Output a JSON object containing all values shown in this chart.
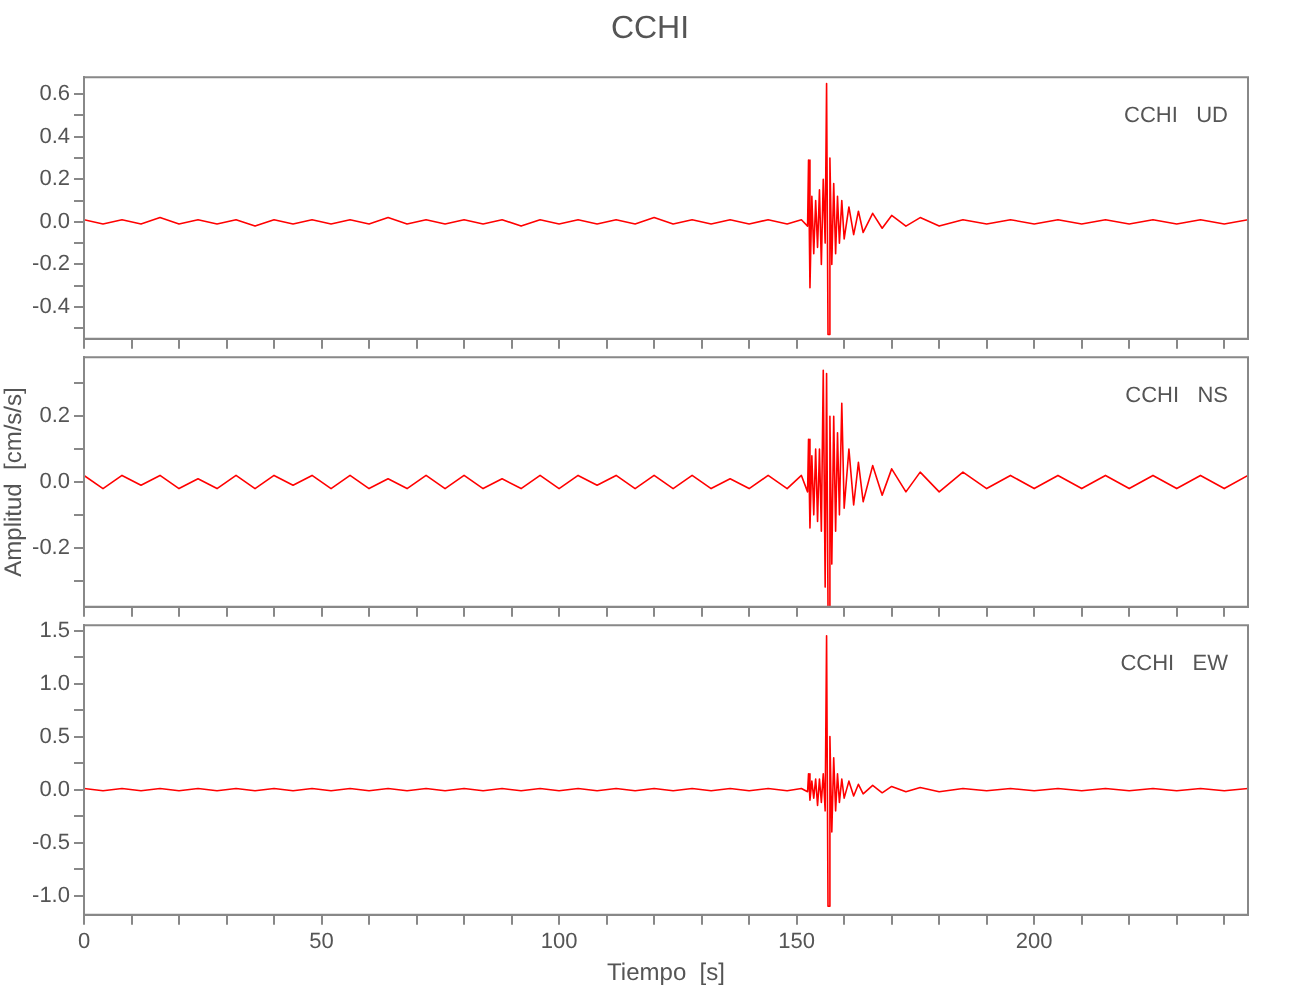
{
  "chart_data": [
    {
      "type": "line",
      "title": "CCHI",
      "annotations": [
        "CCHI   UD"
      ],
      "tick_labels": "y",
      "legend": false,
      "grid": false,
      "marker": "none",
      "x": [
        0,
        4,
        8,
        12,
        16,
        20,
        24,
        28,
        32,
        36,
        40,
        44,
        48,
        52,
        56,
        60,
        64,
        68,
        72,
        76,
        80,
        84,
        88,
        92,
        96,
        100,
        104,
        108,
        112,
        116,
        120,
        124,
        128,
        132,
        136,
        140,
        144,
        148,
        151,
        152.3,
        152.5,
        152.8,
        153.2,
        153.6,
        154,
        154.4,
        154.8,
        155.2,
        155.6,
        156,
        156.3,
        156.6,
        157,
        157.4,
        157.8,
        158.2,
        158.6,
        159,
        159.5,
        160,
        161,
        162,
        163,
        164,
        166,
        168,
        170,
        173,
        176,
        180,
        185,
        190,
        195,
        200,
        205,
        210,
        215,
        220,
        225,
        230,
        235,
        240,
        245
      ],
      "series": [
        {
          "color": "#ff0000",
          "values": [
            0.01,
            -0.01,
            0.01,
            -0.01,
            0.02,
            -0.01,
            0.01,
            -0.01,
            0.01,
            -0.02,
            0.01,
            -0.01,
            0.01,
            -0.01,
            0.01,
            -0.01,
            0.02,
            -0.01,
            0.01,
            -0.01,
            0.01,
            -0.01,
            0.01,
            -0.02,
            0.01,
            -0.01,
            0.01,
            -0.01,
            0.01,
            -0.01,
            0.02,
            -0.01,
            0.01,
            -0.01,
            0.01,
            -0.01,
            0.01,
            -0.01,
            0.01,
            -0.02,
            0.29,
            -0.31,
            0.12,
            -0.15,
            0.1,
            -0.12,
            0.15,
            -0.2,
            0.2,
            -0.1,
            0.65,
            -0.53,
            0.3,
            -0.2,
            0.18,
            -0.15,
            0.12,
            -0.1,
            0.1,
            -0.08,
            0.07,
            -0.06,
            0.05,
            -0.05,
            0.04,
            -0.03,
            0.03,
            -0.02,
            0.02,
            -0.02,
            0.01,
            -0.01,
            0.01,
            -0.01,
            0.01,
            -0.01,
            0.01,
            -0.01,
            0.01,
            -0.01,
            0.01,
            -0.01,
            0.01
          ]
        }
      ],
      "xlim": [
        0,
        245
      ],
      "xticks": [
        0,
        {
          "value": 10,
          "label": null
        },
        {
          "value": 20,
          "label": null
        },
        {
          "value": 30,
          "label": null
        },
        {
          "value": 40,
          "label": null
        },
        50,
        {
          "value": 60,
          "label": null
        },
        {
          "value": 70,
          "label": null
        },
        {
          "value": 80,
          "label": null
        },
        {
          "value": 90,
          "label": null
        },
        100,
        {
          "value": 110,
          "label": null
        },
        {
          "value": 120,
          "label": null
        },
        {
          "value": 130,
          "label": null
        },
        {
          "value": 140,
          "label": null
        },
        150,
        {
          "value": 160,
          "label": null
        },
        {
          "value": 170,
          "label": null
        },
        {
          "value": 180,
          "label": null
        },
        {
          "value": 190,
          "label": null
        },
        200,
        {
          "value": 210,
          "label": null
        },
        {
          "value": 220,
          "label": null
        },
        {
          "value": 230,
          "label": null
        },
        {
          "value": 240,
          "label": null
        }
      ],
      "ylim": [
        -0.55,
        0.68
      ],
      "yticks": [
        {
          "value": -0.5,
          "label": null
        },
        -0.4,
        {
          "value": -0.3,
          "label": null
        },
        -0.2,
        {
          "value": -0.1,
          "label": null
        },
        {
          "value": 0,
          "label": "0.0"
        },
        {
          "value": 0.1,
          "label": null
        },
        0.2,
        {
          "value": 0.3,
          "label": null
        },
        0.4,
        {
          "value": 0.5,
          "label": null
        },
        0.6
      ]
    },
    {
      "type": "line",
      "ylabel": "Amplitud  [cm/s/s]",
      "annotations": [
        "CCHI   NS"
      ],
      "tick_labels": "y",
      "legend": false,
      "grid": false,
      "marker": "none",
      "x": [
        0,
        4,
        8,
        12,
        16,
        20,
        24,
        28,
        32,
        36,
        40,
        44,
        48,
        52,
        56,
        60,
        64,
        68,
        72,
        76,
        80,
        84,
        88,
        92,
        96,
        100,
        104,
        108,
        112,
        116,
        120,
        124,
        128,
        132,
        136,
        140,
        144,
        148,
        151,
        152.3,
        152.5,
        152.8,
        153.2,
        153.6,
        154,
        154.4,
        154.8,
        155.2,
        155.6,
        156,
        156.3,
        156.6,
        157,
        157.4,
        157.8,
        158.2,
        158.6,
        159,
        159.5,
        160,
        161,
        162,
        163,
        164,
        166,
        168,
        170,
        173,
        176,
        180,
        185,
        190,
        195,
        200,
        205,
        210,
        215,
        220,
        225,
        230,
        235,
        240,
        245
      ],
      "series": [
        {
          "color": "#ff0000",
          "values": [
            0.02,
            -0.02,
            0.02,
            -0.01,
            0.02,
            -0.02,
            0.01,
            -0.02,
            0.02,
            -0.02,
            0.02,
            -0.01,
            0.02,
            -0.02,
            0.02,
            -0.02,
            0.01,
            -0.02,
            0.02,
            -0.02,
            0.02,
            -0.02,
            0.01,
            -0.02,
            0.02,
            -0.02,
            0.02,
            -0.01,
            0.02,
            -0.02,
            0.02,
            -0.02,
            0.02,
            -0.02,
            0.01,
            -0.02,
            0.02,
            -0.02,
            0.02,
            -0.03,
            0.13,
            -0.14,
            0.08,
            -0.1,
            0.1,
            -0.12,
            0.1,
            -0.15,
            0.34,
            -0.32,
            0.33,
            -0.38,
            0.2,
            -0.25,
            0.2,
            -0.15,
            0.15,
            -0.1,
            0.24,
            -0.08,
            0.1,
            -0.07,
            0.06,
            -0.06,
            0.05,
            -0.04,
            0.04,
            -0.03,
            0.03,
            -0.03,
            0.03,
            -0.02,
            0.02,
            -0.02,
            0.02,
            -0.02,
            0.02,
            -0.02,
            0.02,
            -0.02,
            0.02,
            -0.02,
            0.02
          ]
        }
      ],
      "xlim": [
        0,
        245
      ],
      "xticks": [
        0,
        {
          "value": 10,
          "label": null
        },
        {
          "value": 20,
          "label": null
        },
        {
          "value": 30,
          "label": null
        },
        {
          "value": 40,
          "label": null
        },
        50,
        {
          "value": 60,
          "label": null
        },
        {
          "value": 70,
          "label": null
        },
        {
          "value": 80,
          "label": null
        },
        {
          "value": 90,
          "label": null
        },
        100,
        {
          "value": 110,
          "label": null
        },
        {
          "value": 120,
          "label": null
        },
        {
          "value": 130,
          "label": null
        },
        {
          "value": 140,
          "label": null
        },
        150,
        {
          "value": 160,
          "label": null
        },
        {
          "value": 170,
          "label": null
        },
        {
          "value": 180,
          "label": null
        },
        {
          "value": 190,
          "label": null
        },
        200,
        {
          "value": 210,
          "label": null
        },
        {
          "value": 220,
          "label": null
        },
        {
          "value": 230,
          "label": null
        },
        {
          "value": 240,
          "label": null
        }
      ],
      "ylim": [
        -0.38,
        0.38
      ],
      "yticks": [
        {
          "value": -0.3,
          "label": null
        },
        -0.2,
        {
          "value": -0.1,
          "label": null
        },
        {
          "value": 0,
          "label": "0.0"
        },
        {
          "value": 0.1,
          "label": null
        },
        0.2,
        {
          "value": 0.3,
          "label": null
        }
      ]
    },
    {
      "type": "line",
      "xlabel": "Tiempo  [s]",
      "annotations": [
        "CCHI   EW"
      ],
      "legend": false,
      "grid": false,
      "marker": "none",
      "x": [
        0,
        4,
        8,
        12,
        16,
        20,
        24,
        28,
        32,
        36,
        40,
        44,
        48,
        52,
        56,
        60,
        64,
        68,
        72,
        76,
        80,
        84,
        88,
        92,
        96,
        100,
        104,
        108,
        112,
        116,
        120,
        124,
        128,
        132,
        136,
        140,
        144,
        148,
        151,
        152.3,
        152.5,
        152.8,
        153.2,
        153.6,
        154,
        154.4,
        154.8,
        155.2,
        155.6,
        156,
        156.3,
        156.6,
        157,
        157.4,
        157.8,
        158.2,
        158.6,
        159,
        159.5,
        160,
        161,
        162,
        163,
        164,
        166,
        168,
        170,
        173,
        176,
        180,
        185,
        190,
        195,
        200,
        205,
        210,
        215,
        220,
        225,
        230,
        235,
        240,
        245
      ],
      "series": [
        {
          "color": "#ff0000",
          "values": [
            0.01,
            -0.01,
            0.01,
            -0.01,
            0.01,
            -0.01,
            0.01,
            -0.01,
            0.01,
            -0.01,
            0.01,
            -0.01,
            0.01,
            -0.01,
            0.01,
            -0.01,
            0.01,
            -0.01,
            0.01,
            -0.01,
            0.01,
            -0.01,
            0.01,
            -0.01,
            0.01,
            -0.01,
            0.01,
            -0.01,
            0.01,
            -0.01,
            0.01,
            -0.01,
            0.01,
            -0.01,
            0.01,
            -0.01,
            0.01,
            -0.01,
            0.01,
            -0.02,
            0.15,
            -0.1,
            0.08,
            -0.08,
            0.1,
            -0.15,
            0.1,
            -0.12,
            0.15,
            -0.2,
            1.45,
            -1.1,
            0.5,
            -0.4,
            0.3,
            -0.2,
            0.15,
            -0.12,
            0.1,
            -0.08,
            0.08,
            -0.06,
            0.05,
            -0.04,
            0.04,
            -0.03,
            0.03,
            -0.02,
            0.02,
            -0.02,
            0.01,
            -0.01,
            0.01,
            -0.01,
            0.01,
            -0.01,
            0.01,
            -0.01,
            0.01,
            -0.01,
            0.01,
            -0.01,
            0.01
          ]
        }
      ],
      "xlim": [
        0,
        245
      ],
      "xticks": [
        0,
        {
          "value": 10,
          "label": null
        },
        {
          "value": 20,
          "label": null
        },
        {
          "value": 30,
          "label": null
        },
        {
          "value": 40,
          "label": null
        },
        50,
        {
          "value": 60,
          "label": null
        },
        {
          "value": 70,
          "label": null
        },
        {
          "value": 80,
          "label": null
        },
        {
          "value": 90,
          "label": null
        },
        100,
        {
          "value": 110,
          "label": null
        },
        {
          "value": 120,
          "label": null
        },
        {
          "value": 130,
          "label": null
        },
        {
          "value": 140,
          "label": null
        },
        150,
        {
          "value": 160,
          "label": null
        },
        {
          "value": 170,
          "label": null
        },
        {
          "value": 180,
          "label": null
        },
        {
          "value": 190,
          "label": null
        },
        200,
        {
          "value": 210,
          "label": null
        },
        {
          "value": 220,
          "label": null
        },
        {
          "value": 230,
          "label": null
        },
        {
          "value": 240,
          "label": null
        }
      ],
      "ylim": [
        -1.18,
        1.55
      ],
      "yticks": [
        {
          "value": -1,
          "label": "-1.0"
        },
        {
          "value": -0.75,
          "label": null
        },
        -0.5,
        {
          "value": -0.25,
          "label": null
        },
        {
          "value": 0,
          "label": "0.0"
        },
        {
          "value": 0.25,
          "label": null
        },
        0.5,
        {
          "value": 0.75,
          "label": null
        },
        {
          "value": 1,
          "label": "1.0"
        },
        {
          "value": 1.25,
          "label": null
        },
        1.5
      ]
    }
  ]
}
